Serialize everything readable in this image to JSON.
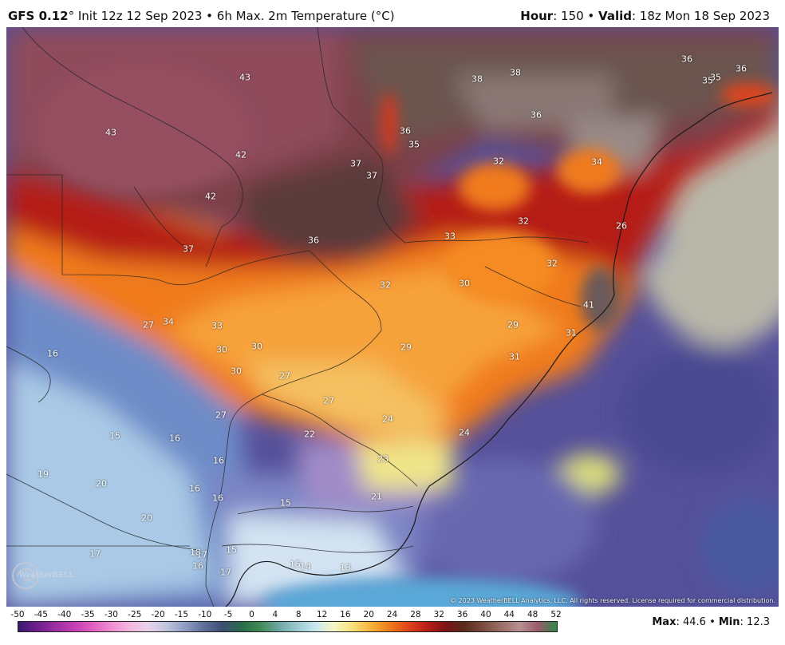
{
  "header": {
    "model": "GFS 0.12",
    "degree": "°",
    "info": " Init 12z 12 Sep 2023 • 6h Max. 2m Temperature (°C)",
    "hour_label": "Hour",
    "hour_value": ": 150 • ",
    "valid_label": "Valid",
    "valid_value": ": 18z Mon 18 Sep 2023"
  },
  "copyright": "© 2023 WeatherBELL Analytics, LLC. All rights reserved. License required for commercial distribution.",
  "logo": {
    "text": "WeatherBELL"
  },
  "colorbar": {
    "ticks": [
      "-50",
      "-45",
      "-40",
      "-35",
      "-30",
      "-25",
      "-20",
      "-15",
      "-10",
      "-5",
      "0",
      "4",
      "8",
      "12",
      "16",
      "20",
      "24",
      "28",
      "32",
      "36",
      "40",
      "44",
      "48",
      "52"
    ],
    "colors": [
      "#3a1a6e",
      "#6e1f8e",
      "#9d2fa2",
      "#c23fb4",
      "#e05fc0",
      "#ee8ed0",
      "#f2b6dd",
      "#e8d2ea",
      "#bfc3dc",
      "#8e9cc2",
      "#5e6f9b",
      "#3d4f72",
      "#2a6a4a",
      "#3f8a55",
      "#6aa6a0",
      "#9ac8d0",
      "#c8e8ee",
      "#f6f6c6",
      "#f7e07a",
      "#f4b23a",
      "#ef7a1c",
      "#e0441a",
      "#b81e17",
      "#7e1414",
      "#5a2a1a",
      "#7a4a3e",
      "#9a6e66",
      "#b89090",
      "#9a5a6a",
      "#2a8a4a"
    ]
  },
  "stats": {
    "max_label": "Max",
    "max_value": ": 44.6 • ",
    "min_label": "Min",
    "min_value": ": 12.3"
  },
  "map_labels": [
    {
      "t": "43"
    },
    {
      "t": "43"
    },
    {
      "t": "42"
    },
    {
      "t": "42"
    },
    {
      "t": "37"
    },
    {
      "t": "38"
    },
    {
      "t": "38"
    },
    {
      "t": "36"
    },
    {
      "t": "35"
    },
    {
      "t": "36"
    },
    {
      "t": "35"
    },
    {
      "t": "36"
    },
    {
      "t": "37"
    },
    {
      "t": "37"
    },
    {
      "t": "32"
    },
    {
      "t": "34"
    },
    {
      "t": "35"
    },
    {
      "t": "36"
    },
    {
      "t": "36"
    },
    {
      "t": "33"
    },
    {
      "t": "32"
    },
    {
      "t": "32"
    },
    {
      "t": "26"
    },
    {
      "t": "32"
    },
    {
      "t": "30"
    },
    {
      "t": "41"
    },
    {
      "t": "29"
    },
    {
      "t": "31"
    },
    {
      "t": "27"
    },
    {
      "t": "34"
    },
    {
      "t": "33"
    },
    {
      "t": "30"
    },
    {
      "t": "30"
    },
    {
      "t": "29"
    },
    {
      "t": "31"
    },
    {
      "t": "30"
    },
    {
      "t": "27"
    },
    {
      "t": "27"
    },
    {
      "t": "24"
    },
    {
      "t": "16"
    },
    {
      "t": "27"
    },
    {
      "t": "22"
    },
    {
      "t": "15"
    },
    {
      "t": "16"
    },
    {
      "t": "24"
    },
    {
      "t": "16"
    },
    {
      "t": "23"
    },
    {
      "t": "19"
    },
    {
      "t": "20"
    },
    {
      "t": "16"
    },
    {
      "t": "16"
    },
    {
      "t": "15"
    },
    {
      "t": "21"
    },
    {
      "t": "20"
    },
    {
      "t": "17"
    },
    {
      "t": "18"
    },
    {
      "t": "17"
    },
    {
      "t": "15"
    },
    {
      "t": "16"
    },
    {
      "t": "15"
    },
    {
      "t": "14"
    },
    {
      "t": "13"
    },
    {
      "t": "17"
    }
  ]
}
